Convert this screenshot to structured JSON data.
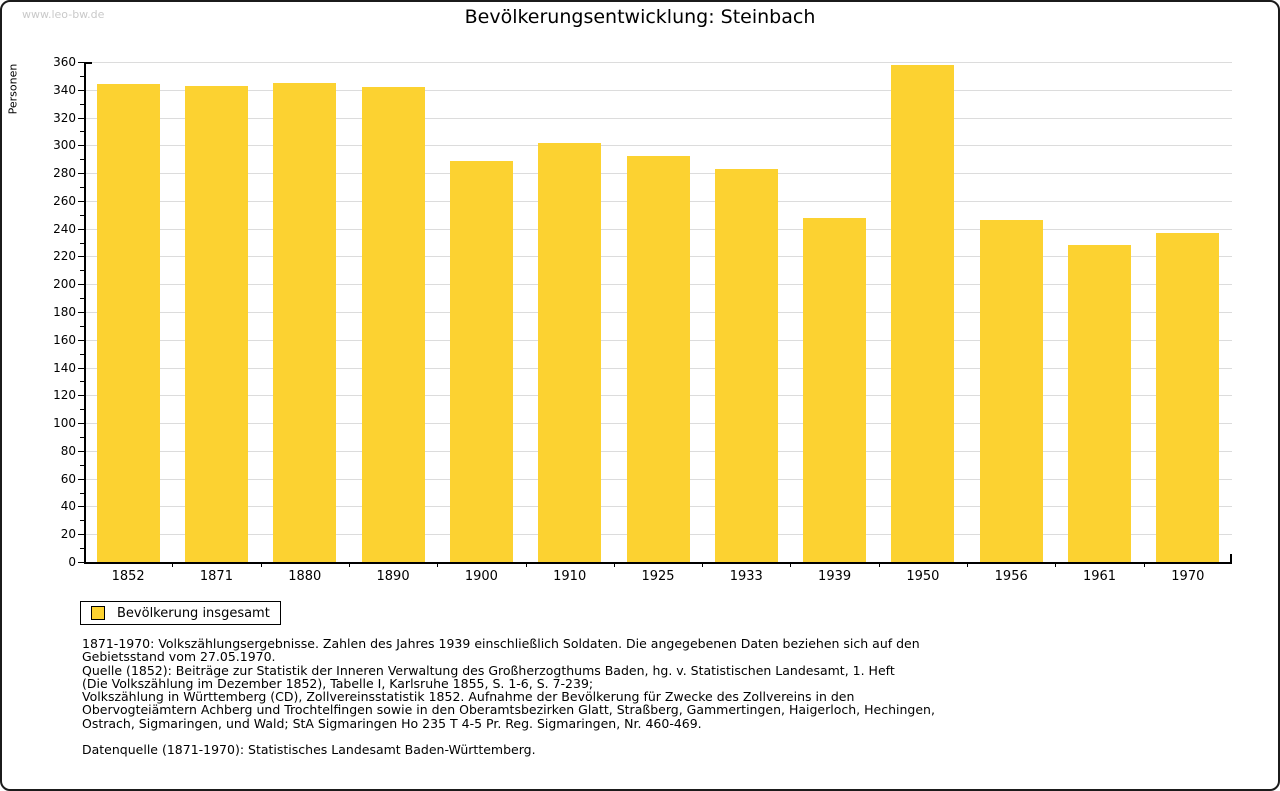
{
  "watermark": "www.leo-bw.de",
  "title": "Bevölkerungsentwicklung: Steinbach",
  "chart_data": {
    "type": "bar",
    "title": "Bevölkerungsentwicklung: Steinbach",
    "xlabel": "",
    "ylabel": "Personen",
    "categories": [
      "1852",
      "1871",
      "1880",
      "1890",
      "1900",
      "1910",
      "1925",
      "1933",
      "1939",
      "1950",
      "1956",
      "1961",
      "1970"
    ],
    "values": [
      344,
      343,
      345,
      342,
      289,
      302,
      292,
      283,
      248,
      358,
      246,
      228,
      237
    ],
    "ylim": [
      0,
      360
    ],
    "ytick_step": 20,
    "yminor_step": 10,
    "grid": true,
    "legend_position": "bottom-left",
    "legend_entries": [
      "Bevölkerung insgesamt"
    ],
    "bar_color": "#fcd231"
  },
  "legend": {
    "label": "Bevölkerung insgesamt"
  },
  "footer": {
    "lines": [
      "1871-1970: Volkszählungsergebnisse. Zahlen des Jahres 1939 einschließlich Soldaten. Die angegebenen Daten beziehen sich auf den",
      "Gebietsstand vom 27.05.1970.",
      "Quelle (1852): Beiträge zur Statistik der Inneren Verwaltung des Großherzogthums Baden, hg. v. Statistischen Landesamt, 1. Heft",
      "(Die Volkszählung im Dezember 1852), Tabelle I, Karlsruhe 1855, S. 1-6, S. 7-239;",
      "Volkszählung in Württemberg (CD), Zollvereinsstatistik 1852. Aufnahme der Bevölkerung für Zwecke des Zollvereins in den",
      "Obervogteiämtern Achberg und Trochtelfingen sowie in den Oberamtsbezirken Glatt, Straßberg, Gammertingen, Haigerloch, Hechingen,",
      "Ostrach, Sigmaringen, und Wald; StA Sigmaringen Ho 235 T 4-5 Pr. Reg. Sigmaringen, Nr. 460-469.",
      "",
      "Datenquelle (1871-1970): Statistisches Landesamt Baden-Württemberg."
    ]
  },
  "colors": {
    "bar": "#fcd231",
    "grid": "#dcdcdc",
    "axis": "#000000",
    "watermark": "#c9c9c9",
    "frame_border": "#1b1b1b"
  }
}
